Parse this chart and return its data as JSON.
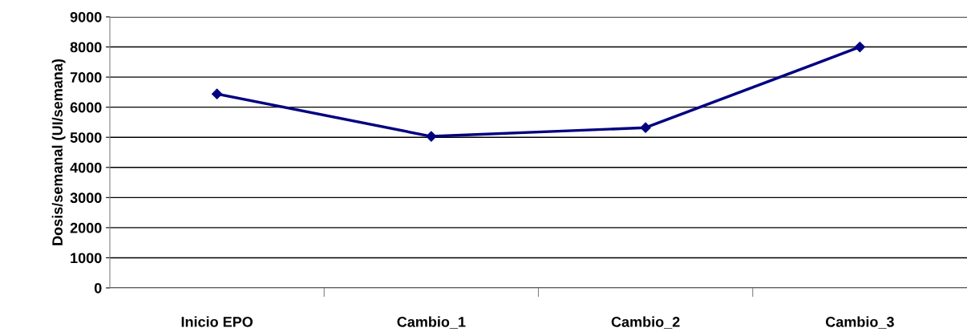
{
  "chart_data": {
    "type": "line",
    "ylabel": "Dosis/semanal (UI/semana)",
    "categories": [
      "Inicio EPO",
      "Cambio_1",
      "Cambio_2",
      "Cambio_3"
    ],
    "series": [
      {
        "color": "#000080",
        "values": [
          6440,
          5030,
          5320,
          8000
        ]
      }
    ],
    "ylim": [
      0,
      9000
    ],
    "yticks": [
      0,
      1000,
      2000,
      3000,
      4000,
      5000,
      6000,
      7000,
      8000,
      9000
    ],
    "grid": "y",
    "marker": "diamond",
    "line_style": "solid",
    "legend": false
  }
}
